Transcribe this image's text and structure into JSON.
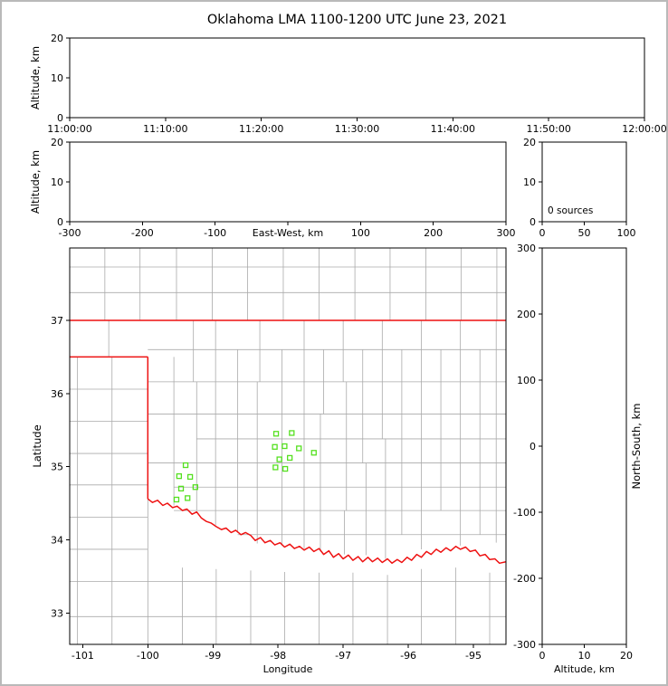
{
  "chart_data": {
    "type": "scatter",
    "title": "Oklahoma LMA 1100-1200 UTC June 23, 2021",
    "colors": {
      "state_border": "#ee1111",
      "county_line": "#aaaaaa",
      "station_marker": "#55e020",
      "axis": "#000000",
      "background": "#ffffff"
    },
    "panels": {
      "time_height": {
        "ylabel": "Altitude, km",
        "ylim": [
          0,
          20
        ],
        "yticks": [
          0,
          10,
          20
        ],
        "xtick_labels": [
          "11:00:00",
          "11:10:00",
          "11:20:00",
          "11:30:00",
          "11:40:00",
          "11:50:00",
          "12:00:00"
        ],
        "points": []
      },
      "ew_height": {
        "ylabel": "Altitude, km",
        "ylim": [
          0,
          20
        ],
        "yticks": [
          0,
          10,
          20
        ],
        "xlabel": "East-West, km",
        "xlim": [
          -300,
          300
        ],
        "xticks": [
          -300,
          -200,
          -100,
          0,
          100,
          200,
          300
        ],
        "points": []
      },
      "histogram": {
        "ylim": [
          0,
          20
        ],
        "yticks": [
          0,
          10,
          20
        ],
        "xlim": [
          0,
          100
        ],
        "xticks": [
          0,
          50,
          100
        ],
        "annotation": "0 sources",
        "points": []
      },
      "plan_view": {
        "xlabel": "Longitude",
        "ylabel": "Latitude",
        "xlim": [
          -101.2,
          -94.5
        ],
        "ylim": [
          32.57,
          37.99
        ],
        "xticks": [
          -101,
          -100,
          -99,
          -98,
          -97,
          -96,
          -95
        ],
        "yticks": [
          33,
          34,
          35,
          36,
          37
        ],
        "stations": [
          [
            -98.03,
            35.45
          ],
          [
            -97.79,
            35.46
          ],
          [
            -98.05,
            35.27
          ],
          [
            -97.9,
            35.28
          ],
          [
            -97.68,
            35.25
          ],
          [
            -97.45,
            35.19
          ],
          [
            -97.98,
            35.1
          ],
          [
            -97.82,
            35.12
          ],
          [
            -98.04,
            34.99
          ],
          [
            -97.89,
            34.97
          ],
          [
            -99.42,
            35.02
          ],
          [
            -99.52,
            34.87
          ],
          [
            -99.35,
            34.86
          ],
          [
            -99.27,
            34.72
          ],
          [
            -99.49,
            34.7
          ],
          [
            -99.39,
            34.57
          ],
          [
            -99.56,
            34.55
          ]
        ],
        "state_border": [
          [
            [
              -101.2,
              37.0
            ],
            [
              -94.5,
              37.0
            ]
          ],
          [
            [
              -101.2,
              36.5
            ],
            [
              -100.0,
              36.5
            ]
          ],
          [
            [
              -100.0,
              36.5
            ],
            [
              -100.0,
              34.56
            ]
          ],
          [
            [
              -100.0,
              34.56
            ],
            [
              -99.93,
              34.51
            ],
            [
              -99.85,
              34.54
            ],
            [
              -99.77,
              34.47
            ],
            [
              -99.7,
              34.5
            ],
            [
              -99.62,
              34.44
            ],
            [
              -99.55,
              34.46
            ],
            [
              -99.47,
              34.4
            ],
            [
              -99.4,
              34.42
            ],
            [
              -99.32,
              34.35
            ],
            [
              -99.25,
              34.38
            ],
            [
              -99.18,
              34.3
            ],
            [
              -99.1,
              34.25
            ],
            [
              -99.03,
              34.23
            ],
            [
              -98.95,
              34.18
            ],
            [
              -98.87,
              34.14
            ],
            [
              -98.8,
              34.16
            ],
            [
              -98.72,
              34.1
            ],
            [
              -98.65,
              34.13
            ],
            [
              -98.57,
              34.07
            ],
            [
              -98.5,
              34.1
            ],
            [
              -98.42,
              34.06
            ],
            [
              -98.35,
              33.99
            ],
            [
              -98.27,
              34.03
            ],
            [
              -98.2,
              33.96
            ],
            [
              -98.12,
              33.99
            ],
            [
              -98.05,
              33.93
            ],
            [
              -97.97,
              33.96
            ],
            [
              -97.9,
              33.9
            ],
            [
              -97.82,
              33.94
            ],
            [
              -97.75,
              33.88
            ],
            [
              -97.67,
              33.91
            ],
            [
              -97.6,
              33.86
            ],
            [
              -97.52,
              33.9
            ],
            [
              -97.45,
              33.84
            ],
            [
              -97.37,
              33.88
            ],
            [
              -97.3,
              33.8
            ],
            [
              -97.22,
              33.85
            ],
            [
              -97.15,
              33.76
            ],
            [
              -97.07,
              33.81
            ],
            [
              -97.0,
              33.74
            ],
            [
              -96.92,
              33.79
            ],
            [
              -96.85,
              33.72
            ],
            [
              -96.77,
              33.77
            ],
            [
              -96.7,
              33.7
            ],
            [
              -96.62,
              33.76
            ],
            [
              -96.55,
              33.7
            ],
            [
              -96.47,
              33.75
            ],
            [
              -96.4,
              33.69
            ],
            [
              -96.32,
              33.74
            ],
            [
              -96.25,
              33.68
            ],
            [
              -96.17,
              33.73
            ],
            [
              -96.1,
              33.69
            ],
            [
              -96.02,
              33.76
            ],
            [
              -95.95,
              33.72
            ],
            [
              -95.87,
              33.8
            ],
            [
              -95.8,
              33.76
            ],
            [
              -95.72,
              33.84
            ],
            [
              -95.65,
              33.8
            ],
            [
              -95.57,
              33.87
            ],
            [
              -95.5,
              33.83
            ],
            [
              -95.42,
              33.89
            ],
            [
              -95.35,
              33.85
            ],
            [
              -95.27,
              33.91
            ],
            [
              -95.2,
              33.87
            ],
            [
              -95.12,
              33.9
            ],
            [
              -95.05,
              33.84
            ],
            [
              -94.97,
              33.86
            ],
            [
              -94.9,
              33.78
            ],
            [
              -94.82,
              33.8
            ],
            [
              -94.75,
              33.73
            ],
            [
              -94.67,
              33.74
            ],
            [
              -94.6,
              33.68
            ],
            [
              -94.5,
              33.7
            ]
          ]
        ],
        "county_segments": [
          [
            "v",
            -100.6,
            37.0,
            36.5
          ],
          [
            "v",
            -99.6,
            36.5,
            34.47
          ],
          [
            "v",
            -99.3,
            37.0,
            36.16
          ],
          [
            "v",
            -99.25,
            36.16,
            34.4
          ],
          [
            "v",
            -98.96,
            37.0,
            34.2
          ],
          [
            "v",
            -98.62,
            36.6,
            34.1
          ],
          [
            "v",
            -98.28,
            37.0,
            36.16
          ],
          [
            "v",
            -98.32,
            36.16,
            33.95
          ],
          [
            "v",
            -97.94,
            36.6,
            33.92
          ],
          [
            "v",
            -97.6,
            37.0,
            33.88
          ],
          [
            "v",
            -97.3,
            36.6,
            35.72
          ],
          [
            "v",
            -97.35,
            35.72,
            33.84
          ],
          [
            "v",
            -97.0,
            37.0,
            36.16
          ],
          [
            "v",
            -96.95,
            36.16,
            34.4
          ],
          [
            "v",
            -96.98,
            34.4,
            33.8
          ],
          [
            "v",
            -96.7,
            36.6,
            35.05
          ],
          [
            "v",
            -96.65,
            35.05,
            33.79
          ],
          [
            "v",
            -96.4,
            37.0,
            35.38
          ],
          [
            "v",
            -96.35,
            35.38,
            33.74
          ],
          [
            "v",
            -96.1,
            36.6,
            34.07
          ],
          [
            "v",
            -95.8,
            37.0,
            33.87
          ],
          [
            "v",
            -95.5,
            36.6,
            34.4
          ],
          [
            "v",
            -95.2,
            37.0,
            33.92
          ],
          [
            "v",
            -94.9,
            36.6,
            34.07
          ],
          [
            "v",
            -94.65,
            37.0,
            33.96
          ],
          [
            "h",
            36.6,
            -100.0,
            -94.5
          ],
          [
            "h",
            36.16,
            -100.0,
            -94.5
          ],
          [
            "h",
            35.72,
            -100.0,
            -94.5
          ],
          [
            "h",
            35.38,
            -99.25,
            -94.5
          ],
          [
            "h",
            35.05,
            -100.0,
            -94.5
          ],
          [
            "h",
            34.72,
            -99.6,
            -94.5
          ],
          [
            "h",
            34.4,
            -99.6,
            -94.5
          ],
          [
            "h",
            34.07,
            -98.62,
            -94.5
          ],
          [
            "h",
            36.06,
            -101.2,
            -100.0
          ],
          [
            "h",
            35.62,
            -101.2,
            -100.0
          ],
          [
            "h",
            35.18,
            -101.2,
            -100.0
          ],
          [
            "h",
            34.75,
            -101.2,
            -100.0
          ],
          [
            "h",
            34.31,
            -101.2,
            -100.0
          ],
          [
            "h",
            33.87,
            -101.2,
            -100.0
          ],
          [
            "h",
            33.43,
            -101.2,
            -94.5
          ],
          [
            "h",
            32.95,
            -101.2,
            -94.5
          ],
          [
            "v",
            -100.55,
            36.5,
            32.57
          ],
          [
            "v",
            -101.08,
            36.5,
            32.57
          ],
          [
            "v",
            -100.0,
            34.56,
            32.57
          ],
          [
            "v",
            -99.47,
            33.62,
            32.57
          ],
          [
            "v",
            -98.95,
            33.6,
            32.57
          ],
          [
            "v",
            -98.42,
            33.58,
            32.57
          ],
          [
            "v",
            -97.9,
            33.56,
            32.57
          ],
          [
            "v",
            -97.37,
            33.55,
            32.57
          ],
          [
            "v",
            -96.85,
            33.55,
            32.57
          ],
          [
            "v",
            -96.32,
            33.52,
            32.57
          ],
          [
            "v",
            -95.8,
            33.6,
            32.57
          ],
          [
            "v",
            -95.27,
            33.62,
            32.57
          ],
          [
            "v",
            -94.75,
            33.55,
            32.57
          ],
          [
            "h",
            37.38,
            -101.2,
            -94.5
          ],
          [
            "h",
            37.73,
            -101.2,
            -94.5
          ],
          [
            "v",
            -100.66,
            37.99,
            37.0
          ],
          [
            "v",
            -100.12,
            37.99,
            37.0
          ],
          [
            "v",
            -99.56,
            37.99,
            37.0
          ],
          [
            "v",
            -99.01,
            37.99,
            37.0
          ],
          [
            "v",
            -98.47,
            37.99,
            37.0
          ],
          [
            "v",
            -97.92,
            37.99,
            37.0
          ],
          [
            "v",
            -97.37,
            37.99,
            37.0
          ],
          [
            "v",
            -96.82,
            37.99,
            37.0
          ],
          [
            "v",
            -96.28,
            37.99,
            37.0
          ],
          [
            "v",
            -95.73,
            37.99,
            37.0
          ],
          [
            "v",
            -95.19,
            37.99,
            37.0
          ],
          [
            "v",
            -94.64,
            37.99,
            37.0
          ]
        ]
      },
      "ns_height": {
        "xlabel": "Altitude, km",
        "ylabel_right": "North-South, km",
        "xlim": [
          0,
          20
        ],
        "xticks": [
          0,
          10,
          20
        ],
        "ylim": [
          -300,
          300
        ],
        "yticks": [
          300,
          200,
          100,
          0,
          -100,
          -200,
          -300
        ],
        "points": []
      }
    },
    "sources_count": 0
  }
}
